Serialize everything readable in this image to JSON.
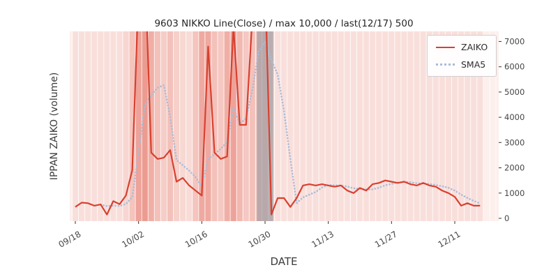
{
  "title": "9603 NIKKO Line(Close) / max 10,000 / last(12/17) 500",
  "axes": {
    "xlabel": "DATE",
    "ylabel": "IPPAN ZAIKO (volume)",
    "yticks": [
      0,
      1000,
      2000,
      3000,
      4000,
      5000,
      6000,
      7000
    ],
    "ytick_labels": [
      "0",
      "1000",
      "2000",
      "3000",
      "4000",
      "5000",
      "6000",
      "7000"
    ],
    "xtick_labels": [
      "09/18",
      "10/02",
      "10/16",
      "10/30",
      "11/13",
      "11/27",
      "12/11"
    ],
    "xtick_indices": [
      0,
      10,
      20,
      30,
      40,
      50,
      60
    ],
    "ylim": [
      0,
      7400
    ]
  },
  "legend": {
    "position": "upper-right",
    "items": [
      {
        "label": "ZAIKO",
        "color": "#d8402f",
        "line_style": "solid"
      },
      {
        "label": "SMA5",
        "color": "#a9bcd9",
        "line_style": "dotted"
      }
    ]
  },
  "colors": {
    "zaiko_line": "#d8402f",
    "sma5_line": "#a9bcd9",
    "plot_bg": "#fcefec",
    "stripe_rgb": [
      223,
      85,
      70
    ],
    "gray_band": "#8e8e96",
    "tick_text": "#454545",
    "grid_white": "#ffffff"
  },
  "chart_data": {
    "type": "line",
    "x": [
      "09/18",
      "09/19",
      "09/20",
      "09/21",
      "09/24",
      "09/25",
      "09/26",
      "09/27",
      "09/28",
      "10/01",
      "10/02",
      "10/03",
      "10/04",
      "10/05",
      "10/08",
      "10/09",
      "10/10",
      "10/11",
      "10/12",
      "10/15",
      "10/16",
      "10/17",
      "10/18",
      "10/19",
      "10/22",
      "10/23",
      "10/24",
      "10/25",
      "10/26",
      "10/29",
      "10/30",
      "10/31",
      "11/01",
      "11/02",
      "11/05",
      "11/06",
      "11/07",
      "11/08",
      "11/09",
      "11/12",
      "11/13",
      "11/14",
      "11/15",
      "11/16",
      "11/19",
      "11/20",
      "11/21",
      "11/22",
      "11/23",
      "11/26",
      "11/27",
      "11/28",
      "11/29",
      "11/30",
      "12/03",
      "12/04",
      "12/05",
      "12/06",
      "12/07",
      "12/10",
      "12/11",
      "12/12",
      "12/13",
      "12/14",
      "12/17"
    ],
    "series": [
      {
        "name": "ZAIKO",
        "style": "solid",
        "color": "#d8402f",
        "values": [
          450,
          620,
          600,
          500,
          550,
          150,
          680,
          560,
          900,
          1900,
          9000,
          10000,
          2600,
          2350,
          2400,
          2700,
          1450,
          1600,
          1300,
          1100,
          900,
          6800,
          2600,
          2350,
          2450,
          7600,
          3700,
          3700,
          8000,
          10000,
          9500,
          150,
          800,
          800,
          450,
          800,
          1300,
          1350,
          1300,
          1350,
          1300,
          1250,
          1300,
          1100,
          1000,
          1200,
          1100,
          1350,
          1400,
          1500,
          1450,
          1400,
          1450,
          1350,
          1300,
          1400,
          1300,
          1250,
          1100,
          1000,
          850,
          500,
          600,
          500,
          500
        ]
      },
      {
        "name": "SMA5",
        "style": "dotted",
        "color": "#a9bcd9",
        "values": [
          null,
          null,
          null,
          null,
          544,
          484,
          496,
          488,
          568,
          838,
          2608,
          4472,
          4880,
          5170,
          5270,
          4010,
          2300,
          2100,
          1890,
          1630,
          1270,
          2340,
          2540,
          2750,
          3020,
          4360,
          3740,
          3960,
          5090,
          6600,
          6980,
          6270,
          5690,
          4250,
          2340,
          600,
          830,
          940,
          1040,
          1220,
          1320,
          1310,
          1300,
          1260,
          1190,
          1170,
          1140,
          1150,
          1210,
          1310,
          1360,
          1420,
          1440,
          1430,
          1390,
          1380,
          1360,
          1320,
          1270,
          1210,
          1100,
          940,
          810,
          690,
          590
        ]
      }
    ],
    "background": {
      "stripe_alpha": [
        0.1,
        0.1,
        0.1,
        0.1,
        0.1,
        0.1,
        0.1,
        0.1,
        0.16,
        0.28,
        0.5,
        0.55,
        0.42,
        0.3,
        0.22,
        0.3,
        0.2,
        0.15,
        0.12,
        0.28,
        0.45,
        0.45,
        0.3,
        0.25,
        0.42,
        0.5,
        0.35,
        0.25,
        0.3,
        0.22,
        0.22,
        0.15,
        0.1,
        0.1,
        0.1,
        0.1,
        0.1,
        0.1,
        0.1,
        0.1,
        0.1,
        0.1,
        0.1,
        0.1,
        0.1,
        0.1,
        0.1,
        0.1,
        0.1,
        0.1,
        0.1,
        0.1,
        0.1,
        0.1,
        0.1,
        0.1,
        0.1,
        0.1,
        0.1,
        0.1,
        0.1,
        0.1,
        0.1,
        0.1,
        0.1
      ],
      "gray_band": {
        "from_index": 28.7,
        "to_index": 31.3
      }
    }
  }
}
